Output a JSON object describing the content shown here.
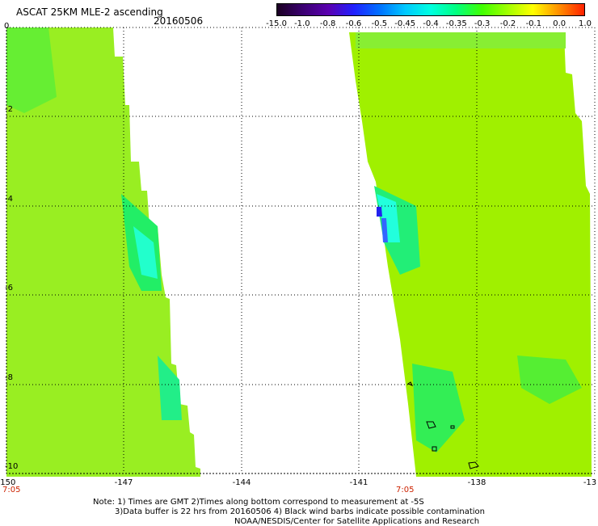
{
  "header": {
    "title": "ASCAT 25KM MLE-2 ascending",
    "date": "20160506"
  },
  "colorbar": {
    "labels": [
      "-15.0",
      "-1.0",
      "-0.8",
      "-0.6",
      "-0.5",
      "-0.45",
      "-0.4",
      "-0.35",
      "-0.3",
      "-0.2",
      "-0.1",
      "0.0",
      "1.0"
    ],
    "colors": [
      "#1a0022",
      "#3a0070",
      "#5a00b0",
      "#2020ff",
      "#0070ff",
      "#00c8ff",
      "#00ffe0",
      "#00ff80",
      "#40ff00",
      "#a0ff00",
      "#ffff00",
      "#ff9000",
      "#ff2000"
    ]
  },
  "map": {
    "lat_labels": [
      "0",
      "-2",
      "-4",
      "-6",
      "-8",
      "-10"
    ],
    "lon_labels": [
      "-150",
      "-147",
      "-144",
      "-141",
      "-138",
      "-13"
    ],
    "time_labels": [
      "7:05",
      "7:05"
    ]
  },
  "footer": {
    "line1": "Note: 1) Times are GMT 2)Times along bottom correspond to measurement at -5S",
    "line2": "3)Data buffer is 22 hrs from 20160506 4) Black wind barbs indicate possible contamination",
    "line3": "NOAA/NESDIS/Center for Satellite Applications and Research"
  }
}
